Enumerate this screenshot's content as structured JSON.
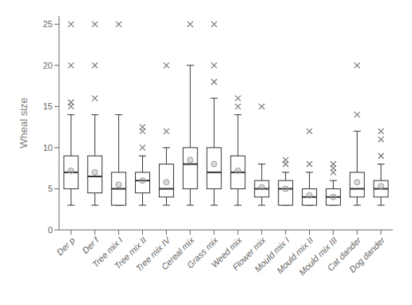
{
  "chart_data": {
    "type": "box",
    "ylabel": "Wheal size",
    "categories": [
      "Der p",
      "Der f",
      "Tree mix I",
      "Tree mix II",
      "Tree mix IV",
      "Cereal mix",
      "Grass mix",
      "Weed mix",
      "Flower mix",
      "Mould mix I",
      "Mould mix II",
      "Mould mix III",
      "Cat dander",
      "Dog dander"
    ],
    "ylim": [
      0,
      26
    ],
    "yticks": [
      0,
      5,
      10,
      15,
      20,
      25
    ],
    "grid": false,
    "boxes": {
      "color": "#333333",
      "q1": [
        5.0,
        4.5,
        3.0,
        4.5,
        4.0,
        5.0,
        5.0,
        5.0,
        4.0,
        3.0,
        3.0,
        3.0,
        4.0,
        4.0
      ],
      "median": [
        7.0,
        6.5,
        5.0,
        6.0,
        5.0,
        8.0,
        7.0,
        7.0,
        5.0,
        5.0,
        4.0,
        4.0,
        5.0,
        5.0
      ],
      "q3": [
        9.0,
        9.0,
        7.0,
        7.0,
        8.0,
        10.0,
        10.0,
        9.0,
        6.0,
        6.0,
        5.0,
        5.0,
        7.0,
        6.0
      ],
      "whislo": [
        3.0,
        3.0,
        3.0,
        3.0,
        3.0,
        3.0,
        3.0,
        3.0,
        3.0,
        3.0,
        3.0,
        3.0,
        3.0,
        3.0
      ],
      "whishi": [
        14.0,
        14.0,
        14.0,
        9.0,
        10.0,
        20.0,
        16.0,
        14.0,
        8.0,
        7.0,
        7.0,
        6.0,
        12.0,
        8.0
      ]
    },
    "means": {
      "color": "#999999",
      "marker": "o",
      "values": [
        7.2,
        7.0,
        5.5,
        6.0,
        5.8,
        8.5,
        8.0,
        7.2,
        5.2,
        5.0,
        4.2,
        4.0,
        5.8,
        5.3
      ]
    },
    "fliers": {
      "color": "#777777",
      "marker": "x",
      "values": [
        [
          15.0,
          15.5,
          20.0,
          25.0
        ],
        [
          16.0,
          20.0,
          25.0
        ],
        [
          25.0
        ],
        [
          10.0,
          12.0,
          12.5
        ],
        [
          12.0,
          20.0
        ],
        [
          25.0
        ],
        [
          18.0,
          20.0,
          25.0
        ],
        [
          15.0,
          16.0
        ],
        [
          15.0
        ],
        [
          8.0,
          8.5
        ],
        [
          8.0,
          12.0
        ],
        [
          7.0,
          7.5,
          8.0
        ],
        [
          14.0,
          20.0
        ],
        [
          9.0,
          11.0,
          12.0
        ]
      ]
    }
  }
}
